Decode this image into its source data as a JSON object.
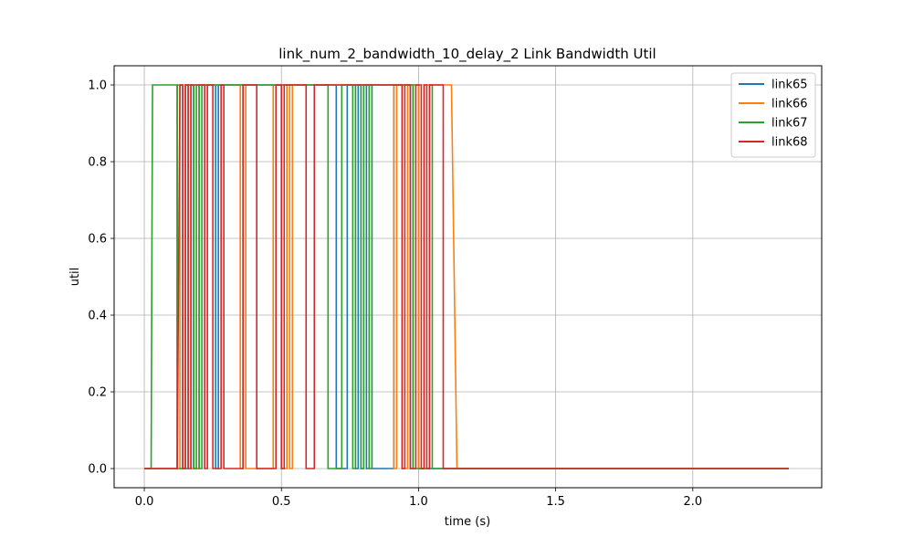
{
  "chart_data": {
    "type": "line",
    "step": true,
    "title": "link_num_2_bandwidth_10_delay_2 Link Bandwidth Util",
    "xlabel": "time (s)",
    "ylabel": "util",
    "xlim": [
      -0.11,
      2.47
    ],
    "ylim": [
      -0.05,
      1.05
    ],
    "xticks": [
      0.0,
      0.5,
      1.0,
      1.5,
      2.0
    ],
    "xtick_labels": [
      "0.0",
      "0.5",
      "1.0",
      "1.5",
      "2.0"
    ],
    "yticks": [
      0.0,
      0.2,
      0.4,
      0.6,
      0.8,
      1.0
    ],
    "ytick_labels": [
      "0.0",
      "0.2",
      "0.4",
      "0.6",
      "0.8",
      "1.0"
    ],
    "grid": true,
    "legend_position": "top-right",
    "series": [
      {
        "name": "link65",
        "color": "#1f77b4",
        "points": [
          [
            0.0,
            0
          ],
          [
            0.12,
            0
          ],
          [
            0.12,
            1
          ],
          [
            0.14,
            1
          ],
          [
            0.14,
            0
          ],
          [
            0.16,
            0
          ],
          [
            0.16,
            1
          ],
          [
            0.18,
            1
          ],
          [
            0.18,
            0
          ],
          [
            0.2,
            0
          ],
          [
            0.2,
            1
          ],
          [
            0.26,
            1
          ],
          [
            0.26,
            0
          ],
          [
            0.27,
            0
          ],
          [
            0.27,
            1
          ],
          [
            0.7,
            1
          ],
          [
            0.7,
            0
          ],
          [
            0.74,
            0
          ],
          [
            0.74,
            1
          ],
          [
            0.77,
            1
          ],
          [
            0.77,
            0
          ],
          [
            0.78,
            0
          ],
          [
            0.78,
            1
          ],
          [
            0.79,
            1
          ],
          [
            0.79,
            0
          ],
          [
            0.8,
            0
          ],
          [
            0.8,
            1
          ],
          [
            0.81,
            1
          ],
          [
            0.81,
            0
          ],
          [
            0.82,
            0
          ],
          [
            0.82,
            1
          ],
          [
            0.83,
            1
          ],
          [
            0.83,
            0
          ],
          [
            0.91,
            0
          ],
          [
            0.91,
            1
          ],
          [
            0.97,
            1
          ],
          [
            0.97,
            0
          ],
          [
            0.98,
            0
          ],
          [
            0.98,
            1
          ],
          [
            1.0,
            1
          ],
          [
            1.0,
            0
          ],
          [
            2.35,
            0
          ]
        ]
      },
      {
        "name": "link66",
        "color": "#ff7f0e",
        "points": [
          [
            0.0,
            0
          ],
          [
            0.12,
            0
          ],
          [
            0.12,
            1
          ],
          [
            0.13,
            1
          ],
          [
            0.13,
            0
          ],
          [
            0.15,
            0
          ],
          [
            0.15,
            1
          ],
          [
            0.17,
            1
          ],
          [
            0.17,
            0
          ],
          [
            0.2,
            0
          ],
          [
            0.2,
            1
          ],
          [
            0.35,
            1
          ],
          [
            0.35,
            0
          ],
          [
            0.36,
            0
          ],
          [
            0.36,
            1
          ],
          [
            0.37,
            1
          ],
          [
            0.37,
            0
          ],
          [
            0.47,
            0
          ],
          [
            0.47,
            1
          ],
          [
            0.5,
            1
          ],
          [
            0.5,
            0
          ],
          [
            0.52,
            0
          ],
          [
            0.52,
            1
          ],
          [
            0.53,
            1
          ],
          [
            0.53,
            0
          ],
          [
            0.54,
            0
          ],
          [
            0.54,
            1
          ],
          [
            0.91,
            1
          ],
          [
            0.91,
            0
          ],
          [
            0.92,
            0
          ],
          [
            0.92,
            1
          ],
          [
            0.94,
            1
          ],
          [
            0.94,
            0
          ],
          [
            0.96,
            0
          ],
          [
            0.96,
            1
          ],
          [
            1.0,
            1
          ],
          [
            1.0,
            0
          ],
          [
            1.02,
            0
          ],
          [
            1.02,
            1
          ],
          [
            1.12,
            1
          ],
          [
            1.14,
            0
          ],
          [
            2.35,
            0
          ]
        ]
      },
      {
        "name": "link67",
        "color": "#2ca02c",
        "points": [
          [
            0.0,
            0
          ],
          [
            0.025,
            0
          ],
          [
            0.03,
            1
          ],
          [
            0.12,
            1
          ],
          [
            0.12,
            0
          ],
          [
            0.15,
            0
          ],
          [
            0.15,
            1
          ],
          [
            0.18,
            1
          ],
          [
            0.18,
            0
          ],
          [
            0.19,
            0
          ],
          [
            0.19,
            1
          ],
          [
            0.2,
            1
          ],
          [
            0.2,
            0
          ],
          [
            0.21,
            0
          ],
          [
            0.21,
            1
          ],
          [
            0.67,
            1
          ],
          [
            0.67,
            0
          ],
          [
            0.72,
            0
          ],
          [
            0.72,
            1
          ],
          [
            0.76,
            1
          ],
          [
            0.76,
            0
          ],
          [
            0.77,
            0
          ],
          [
            0.77,
            1
          ],
          [
            0.79,
            1
          ],
          [
            0.79,
            0
          ],
          [
            0.8,
            0
          ],
          [
            0.8,
            1
          ],
          [
            0.82,
            1
          ],
          [
            0.82,
            0
          ],
          [
            0.83,
            0
          ],
          [
            0.83,
            1
          ],
          [
            0.98,
            1
          ],
          [
            0.98,
            0
          ],
          [
            1.04,
            0
          ],
          [
            1.04,
            1
          ],
          [
            1.05,
            1
          ],
          [
            1.05,
            0
          ],
          [
            2.35,
            0
          ]
        ]
      },
      {
        "name": "link68",
        "color": "#d62728",
        "points": [
          [
            0.0,
            0
          ],
          [
            0.12,
            0
          ],
          [
            0.13,
            1
          ],
          [
            0.14,
            1
          ],
          [
            0.14,
            0
          ],
          [
            0.15,
            0
          ],
          [
            0.15,
            1
          ],
          [
            0.16,
            1
          ],
          [
            0.16,
            0
          ],
          [
            0.17,
            0
          ],
          [
            0.17,
            1
          ],
          [
            0.22,
            1
          ],
          [
            0.22,
            0
          ],
          [
            0.23,
            0
          ],
          [
            0.23,
            1
          ],
          [
            0.25,
            1
          ],
          [
            0.25,
            0
          ],
          [
            0.28,
            0
          ],
          [
            0.28,
            1
          ],
          [
            0.29,
            1
          ],
          [
            0.29,
            0
          ],
          [
            0.36,
            0
          ],
          [
            0.36,
            1
          ],
          [
            0.41,
            1
          ],
          [
            0.41,
            0
          ],
          [
            0.48,
            0
          ],
          [
            0.48,
            1
          ],
          [
            0.5,
            1
          ],
          [
            0.5,
            0
          ],
          [
            0.51,
            0
          ],
          [
            0.51,
            1
          ],
          [
            0.59,
            1
          ],
          [
            0.59,
            0
          ],
          [
            0.62,
            0
          ],
          [
            0.62,
            1
          ],
          [
            0.94,
            1
          ],
          [
            0.94,
            0
          ],
          [
            0.95,
            0
          ],
          [
            0.95,
            1
          ],
          [
            0.97,
            1
          ],
          [
            0.97,
            0
          ],
          [
            0.99,
            0
          ],
          [
            0.99,
            1
          ],
          [
            1.01,
            1
          ],
          [
            1.01,
            0
          ],
          [
            1.02,
            0
          ],
          [
            1.02,
            1
          ],
          [
            1.03,
            1
          ],
          [
            1.03,
            0
          ],
          [
            1.04,
            0
          ],
          [
            1.04,
            1
          ],
          [
            1.09,
            1
          ],
          [
            1.09,
            0
          ],
          [
            2.35,
            0
          ]
        ]
      }
    ]
  }
}
